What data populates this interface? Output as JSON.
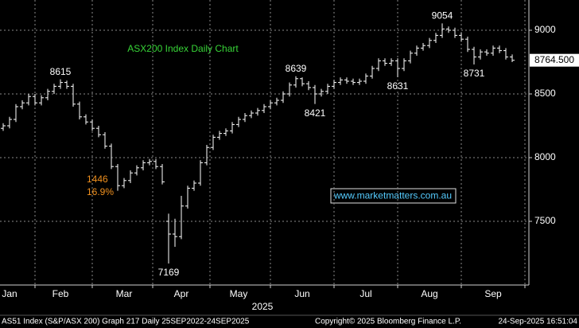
{
  "chart_data": {
    "type": "ohlc",
    "title": "ASX200 Index Daily Chart",
    "color": "#ffffff",
    "title_color": "#37d437",
    "categories": [
      null,
      "Jan",
      null,
      null,
      null,
      null,
      null,
      null,
      null,
      "Feb",
      null,
      null,
      null,
      null,
      null,
      null,
      null,
      null,
      null,
      "Mar",
      null,
      null,
      null,
      null,
      null,
      null,
      null,
      null,
      "Apr",
      null,
      null,
      null,
      null,
      null,
      null,
      null,
      null,
      "May",
      null,
      null,
      null,
      null,
      null,
      null,
      null,
      null,
      null,
      "Jun",
      null,
      null,
      null,
      null,
      null,
      null,
      null,
      null,
      null,
      "Jul",
      null,
      null,
      null,
      null,
      null,
      null,
      null,
      null,
      null,
      "Aug",
      null,
      null,
      null,
      null,
      null,
      null,
      null,
      null,
      null,
      "Sep",
      null,
      null,
      null
    ],
    "open": [
      8230,
      8250,
      8300,
      8400,
      8430,
      8480,
      8430,
      8470,
      8520,
      8560,
      8590,
      8560,
      8420,
      8320,
      8280,
      8230,
      8180,
      8090,
      7930,
      7780,
      7820,
      7880,
      7920,
      7960,
      7970,
      7930,
      7500,
      7400,
      7380,
      7620,
      7760,
      7800,
      7960,
      8080,
      8160,
      8190,
      8210,
      8260,
      8300,
      8330,
      8350,
      8370,
      8400,
      8430,
      8450,
      8500,
      8570,
      8620,
      8580,
      8550,
      8500,
      8520,
      8560,
      8590,
      8610,
      8600,
      8590,
      8600,
      8640,
      8700,
      8760,
      8740,
      8760,
      8700,
      8760,
      8820,
      8860,
      8880,
      8920,
      8960,
      9010,
      9000,
      8960,
      8930,
      8850,
      8790,
      8830,
      8820,
      8860,
      8840,
      8790
    ],
    "high": [
      8270,
      8320,
      8420,
      8450,
      8500,
      8500,
      8490,
      8540,
      8580,
      8615,
      8605,
      8580,
      8440,
      8340,
      8300,
      8250,
      8200,
      8110,
      7950,
      7840,
      7900,
      7940,
      7980,
      7990,
      7990,
      7950,
      7560,
      7520,
      7700,
      7780,
      7820,
      7980,
      8100,
      8180,
      8210,
      8230,
      8280,
      8320,
      8350,
      8370,
      8390,
      8420,
      8450,
      8470,
      8520,
      8590,
      8639,
      8630,
      8600,
      8570,
      8540,
      8580,
      8610,
      8630,
      8630,
      8620,
      8620,
      8660,
      8720,
      8780,
      8780,
      8780,
      8780,
      8780,
      8840,
      8880,
      8900,
      8940,
      8980,
      9054,
      9030,
      9020,
      8980,
      8950,
      8870,
      8850,
      8850,
      8880,
      8880,
      8860,
      8810
    ],
    "low": [
      8210,
      8230,
      8280,
      8380,
      8410,
      8410,
      8410,
      8450,
      8500,
      8540,
      8540,
      8400,
      8300,
      8260,
      8210,
      8160,
      8070,
      7910,
      7740,
      7760,
      7800,
      7860,
      7900,
      7940,
      7910,
      7790,
      7169,
      7300,
      7360,
      7600,
      7740,
      7780,
      7940,
      8060,
      8140,
      8170,
      8190,
      8240,
      8280,
      8310,
      8330,
      8350,
      8380,
      8410,
      8430,
      8480,
      8550,
      8560,
      8530,
      8421,
      8480,
      8500,
      8540,
      8570,
      8580,
      8570,
      8570,
      8580,
      8620,
      8680,
      8720,
      8720,
      8631,
      8680,
      8740,
      8800,
      8840,
      8860,
      8900,
      8940,
      8980,
      8940,
      8910,
      8830,
      8731,
      8770,
      8800,
      8800,
      8820,
      8770,
      8750
    ],
    "close": [
      8250,
      8300,
      8400,
      8430,
      8480,
      8430,
      8470,
      8520,
      8560,
      8590,
      8560,
      8420,
      8320,
      8280,
      8230,
      8180,
      8090,
      7930,
      7780,
      7820,
      7880,
      7920,
      7960,
      7970,
      7930,
      7810,
      7400,
      7380,
      7620,
      7760,
      7800,
      7960,
      8080,
      8160,
      8190,
      8210,
      8260,
      8300,
      8330,
      8350,
      8370,
      8400,
      8430,
      8450,
      8500,
      8570,
      8620,
      8580,
      8550,
      8500,
      8520,
      8560,
      8590,
      8610,
      8600,
      8590,
      8600,
      8640,
      8700,
      8760,
      8740,
      8760,
      8700,
      8760,
      8820,
      8860,
      8880,
      8920,
      8960,
      9010,
      9000,
      8960,
      8930,
      8850,
      8790,
      8830,
      8820,
      8860,
      8840,
      8790,
      8764.5
    ],
    "ylim": [
      7000,
      9237.5
    ],
    "yticks": [
      7500,
      8000,
      8500,
      9000
    ],
    "grid": true,
    "x_label": "2025",
    "annotations": [
      8615,
      9054,
      8639,
      8421,
      8631,
      8731,
      7169
    ],
    "drawdown": {
      "values": [
        1446,
        16.9
      ],
      "value_labels": [
        "1446",
        "16.9%"
      ],
      "color": "#f0901e"
    },
    "last_price": {
      "value": 8764.5,
      "label": "8764.500"
    },
    "website": "www.marketmatters.com.au"
  },
  "footer": [
    "AS51 Index (S&P/ASX 200) Graph 217  Daily 25SEP2022-24SEP2025",
    "Copyright© 2025 Bloomberg Finance L.P.",
    "24-Sep-2025 16:51:04"
  ]
}
